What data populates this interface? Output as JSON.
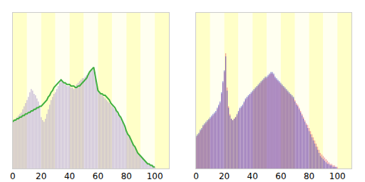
{
  "chart_data": [
    {
      "type": "bar",
      "x": [
        0,
        1,
        2,
        3,
        4,
        5,
        6,
        7,
        8,
        9,
        10,
        11,
        12,
        13,
        14,
        15,
        16,
        17,
        18,
        19,
        20,
        21,
        22,
        23,
        24,
        25,
        26,
        27,
        28,
        29,
        30,
        31,
        32,
        33,
        34,
        35,
        36,
        37,
        38,
        39,
        40,
        41,
        42,
        43,
        44,
        45,
        46,
        47,
        48,
        49,
        50,
        51,
        52,
        53,
        54,
        55,
        56,
        57,
        58,
        59,
        60,
        61,
        62,
        63,
        64,
        65,
        66,
        67,
        68,
        69,
        70,
        71,
        72,
        73,
        74,
        75,
        76,
        77,
        78,
        79,
        80,
        81,
        82,
        83,
        84,
        85,
        86,
        87,
        88,
        89,
        90,
        91,
        92,
        93,
        94,
        95,
        96,
        97,
        98,
        99,
        100
      ],
      "series": [
        {
          "type": "bar",
          "color": "#b8a8d0",
          "values": [
            30,
            31,
            32,
            33,
            34,
            35,
            36,
            38,
            40,
            42,
            44,
            46,
            49,
            51,
            50,
            48,
            47,
            45,
            43,
            40,
            33,
            31,
            30,
            32,
            35,
            38,
            41,
            44,
            46,
            48,
            49,
            51,
            53,
            55,
            57,
            56,
            55,
            54,
            53,
            53,
            53,
            52,
            52,
            51,
            53,
            54,
            55,
            56,
            57,
            58,
            58,
            59,
            60,
            61,
            62,
            63,
            64,
            65,
            62,
            55,
            51,
            49,
            48,
            47,
            46,
            45,
            44,
            43,
            42,
            41,
            40,
            39,
            38,
            37,
            35,
            34,
            33,
            31,
            29,
            27,
            24,
            22,
            21,
            19,
            17,
            15,
            14,
            12,
            10,
            9,
            8,
            7,
            6,
            5,
            4,
            3,
            3,
            2,
            2,
            1,
            1
          ]
        },
        {
          "type": "line",
          "color": "#40b040",
          "values": [
            30,
            31,
            31,
            32,
            32,
            33,
            33,
            34,
            34,
            35,
            35,
            36,
            36,
            37,
            37,
            38,
            38,
            39,
            39,
            40,
            40,
            41,
            42,
            43,
            44,
            46,
            47,
            49,
            50,
            52,
            53,
            54,
            55,
            56,
            57,
            56,
            55,
            55,
            54,
            54,
            54,
            53,
            53,
            53,
            52,
            52,
            53,
            53,
            54,
            55,
            56,
            57,
            58,
            60,
            62,
            63,
            64,
            65,
            60,
            54,
            50,
            49,
            48,
            48,
            47,
            47,
            46,
            45,
            44,
            42,
            41,
            40,
            39,
            37,
            36,
            34,
            33,
            31,
            29,
            27,
            24,
            22,
            21,
            19,
            17,
            15,
            14,
            12,
            10,
            9,
            8,
            7,
            6,
            5,
            4,
            3,
            3,
            2,
            2,
            1,
            1
          ]
        }
      ],
      "xlim": [
        0,
        110
      ],
      "xticks": [
        0,
        20,
        40,
        60,
        80,
        100
      ],
      "ylim": [
        0,
        100
      ],
      "tick_labels": "x",
      "grid": false
    },
    {
      "type": "bar",
      "x": [
        0,
        1,
        2,
        3,
        4,
        5,
        6,
        7,
        8,
        9,
        10,
        11,
        12,
        13,
        14,
        15,
        16,
        17,
        18,
        19,
        20,
        21,
        22,
        23,
        24,
        25,
        26,
        27,
        28,
        29,
        30,
        31,
        32,
        33,
        34,
        35,
        36,
        37,
        38,
        39,
        40,
        41,
        42,
        43,
        44,
        45,
        46,
        47,
        48,
        49,
        50,
        51,
        52,
        53,
        54,
        55,
        56,
        57,
        58,
        59,
        60,
        61,
        62,
        63,
        64,
        65,
        66,
        67,
        68,
        69,
        70,
        71,
        72,
        73,
        74,
        75,
        76,
        77,
        78,
        79,
        80,
        81,
        82,
        83,
        84,
        85,
        86,
        87,
        88,
        89,
        90,
        91,
        92,
        93,
        94,
        95,
        96,
        97,
        98,
        99,
        100
      ],
      "series": [
        {
          "type": "bar",
          "color": "#e05070",
          "values": [
            20,
            21,
            22,
            24,
            25,
            27,
            28,
            29,
            30,
            31,
            32,
            33,
            34,
            35,
            36,
            38,
            40,
            42,
            48,
            55,
            62,
            74,
            52,
            40,
            35,
            32,
            31,
            32,
            33,
            34,
            36,
            38,
            39,
            40,
            42,
            44,
            45,
            46,
            47,
            48,
            49,
            50,
            51,
            52,
            53,
            54,
            55,
            56,
            57,
            58,
            58,
            59,
            60,
            61,
            61,
            60,
            58,
            57,
            56,
            55,
            54,
            53,
            52,
            51,
            50,
            49,
            48,
            47,
            46,
            45,
            44,
            42,
            41,
            39,
            37,
            35,
            33,
            31,
            29,
            28,
            26,
            24,
            22,
            20,
            18,
            16,
            14,
            12,
            10,
            9,
            8,
            7,
            6,
            5,
            4,
            3,
            3,
            2,
            2,
            1,
            1
          ]
        },
        {
          "type": "bar",
          "color": "#3030c0",
          "values": [
            21,
            22,
            23,
            25,
            26,
            28,
            29,
            30,
            31,
            32,
            33,
            34,
            35,
            36,
            37,
            39,
            41,
            43,
            49,
            56,
            63,
            72,
            50,
            39,
            34,
            32,
            31,
            32,
            33,
            35,
            37,
            39,
            40,
            41,
            43,
            45,
            46,
            47,
            48,
            49,
            50,
            51,
            52,
            53,
            54,
            55,
            56,
            57,
            58,
            59,
            59,
            60,
            61,
            62,
            62,
            61,
            59,
            58,
            57,
            56,
            55,
            54,
            53,
            52,
            51,
            50,
            49,
            48,
            47,
            46,
            43,
            41,
            40,
            38,
            36,
            34,
            32,
            30,
            28,
            26,
            24,
            22,
            20,
            18,
            16,
            14,
            12,
            10,
            8,
            7,
            6,
            5,
            4,
            3,
            3,
            2,
            2,
            1,
            1,
            1,
            0
          ]
        }
      ],
      "xlim": [
        0,
        110
      ],
      "xticks": [
        0,
        20,
        40,
        60,
        80,
        100
      ],
      "ylim": [
        0,
        100
      ],
      "tick_labels": "x",
      "grid": false,
      "stacked": false
    }
  ]
}
